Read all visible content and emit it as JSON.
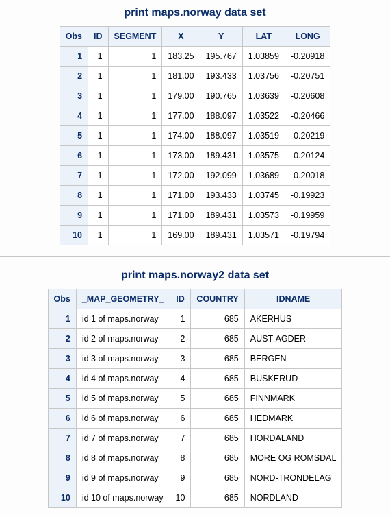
{
  "section1": {
    "title": "print maps.norway data set",
    "columns": [
      "Obs",
      "ID",
      "SEGMENT",
      "X",
      "Y",
      "LAT",
      "LONG"
    ],
    "rows": [
      {
        "obs": "1",
        "id": "1",
        "segment": "1",
        "x": "183.25",
        "y": "195.767",
        "lat": "1.03859",
        "long": "-0.20918"
      },
      {
        "obs": "2",
        "id": "1",
        "segment": "1",
        "x": "181.00",
        "y": "193.433",
        "lat": "1.03756",
        "long": "-0.20751"
      },
      {
        "obs": "3",
        "id": "1",
        "segment": "1",
        "x": "179.00",
        "y": "190.765",
        "lat": "1.03639",
        "long": "-0.20608"
      },
      {
        "obs": "4",
        "id": "1",
        "segment": "1",
        "x": "177.00",
        "y": "188.097",
        "lat": "1.03522",
        "long": "-0.20466"
      },
      {
        "obs": "5",
        "id": "1",
        "segment": "1",
        "x": "174.00",
        "y": "188.097",
        "lat": "1.03519",
        "long": "-0.20219"
      },
      {
        "obs": "6",
        "id": "1",
        "segment": "1",
        "x": "173.00",
        "y": "189.431",
        "lat": "1.03575",
        "long": "-0.20124"
      },
      {
        "obs": "7",
        "id": "1",
        "segment": "1",
        "x": "172.00",
        "y": "192.099",
        "lat": "1.03689",
        "long": "-0.20018"
      },
      {
        "obs": "8",
        "id": "1",
        "segment": "1",
        "x": "171.00",
        "y": "193.433",
        "lat": "1.03745",
        "long": "-0.19923"
      },
      {
        "obs": "9",
        "id": "1",
        "segment": "1",
        "x": "171.00",
        "y": "189.431",
        "lat": "1.03573",
        "long": "-0.19959"
      },
      {
        "obs": "10",
        "id": "1",
        "segment": "1",
        "x": "169.00",
        "y": "189.431",
        "lat": "1.03571",
        "long": "-0.19794"
      }
    ]
  },
  "section2": {
    "title": "print maps.norway2 data set",
    "columns": [
      "Obs",
      "_MAP_GEOMETRY_",
      "ID",
      "COUNTRY",
      "IDNAME"
    ],
    "rows": [
      {
        "obs": "1",
        "geom": "id 1 of maps.norway",
        "id": "1",
        "country": "685",
        "idname": "AKERHUS"
      },
      {
        "obs": "2",
        "geom": "id 2 of maps.norway",
        "id": "2",
        "country": "685",
        "idname": "AUST-AGDER"
      },
      {
        "obs": "3",
        "geom": "id 3 of maps.norway",
        "id": "3",
        "country": "685",
        "idname": "BERGEN"
      },
      {
        "obs": "4",
        "geom": "id 4 of maps.norway",
        "id": "4",
        "country": "685",
        "idname": "BUSKERUD"
      },
      {
        "obs": "5",
        "geom": "id 5 of maps.norway",
        "id": "5",
        "country": "685",
        "idname": "FINNMARK"
      },
      {
        "obs": "6",
        "geom": "id 6 of maps.norway",
        "id": "6",
        "country": "685",
        "idname": "HEDMARK"
      },
      {
        "obs": "7",
        "geom": "id 7 of maps.norway",
        "id": "7",
        "country": "685",
        "idname": "HORDALAND"
      },
      {
        "obs": "8",
        "geom": "id 8 of maps.norway",
        "id": "8",
        "country": "685",
        "idname": "MORE OG ROMSDAL"
      },
      {
        "obs": "9",
        "geom": "id 9 of maps.norway",
        "id": "9",
        "country": "685",
        "idname": "NORD-TRONDELAG"
      },
      {
        "obs": "10",
        "geom": "id 10 of maps.norway",
        "id": "10",
        "country": "685",
        "idname": "NORDLAND"
      }
    ]
  },
  "style": {
    "header_bg": "#ecf2f9",
    "header_fg": "#0b2d6a",
    "border_color": "#c7c7c7",
    "body_bg": "#fdfdfd",
    "title_fontsize": 16,
    "cell_fontsize": 12.5
  }
}
